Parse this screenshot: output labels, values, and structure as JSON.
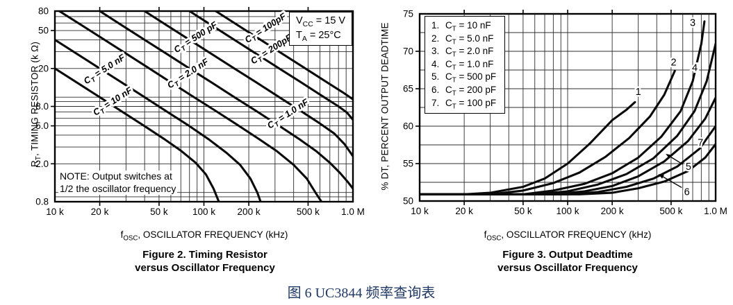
{
  "page": {
    "caption": {
      "text": "图 6 UC3844 频率查询表",
      "color": "#1f3864"
    },
    "background": "#ffffff",
    "ink_color": "#000000"
  },
  "chart_data": [
    {
      "id": "figure2",
      "type": "line",
      "title": "Figure 2. Timing Resistor versus Oscillator Frequency",
      "title_lines": [
        "Figure 2. Timing Resistor",
        "versus Oscillator Frequency"
      ],
      "xlabel": "fOSC, OSCILLATOR FREQUENCY (kHz)",
      "xlabel_parts": {
        "pre": "f",
        "sub": "OSC",
        "post": ", OSCILLATOR FREQUENCY (kHz)"
      },
      "ylabel": "RT, TIMING RESISTOR (kΩ)",
      "ylabel_parts": {
        "pre": "R",
        "sub": "T",
        "post": ", TIMING RESISTOR (k Ω)"
      },
      "x_scale": "log",
      "y_scale": "log",
      "xlim": [
        10,
        1000
      ],
      "ylim": [
        0.8,
        80
      ],
      "x_unit": "kHz",
      "y_unit": "kΩ",
      "grid": "log-minor-both",
      "note_lines": [
        "NOTE: Output switches at",
        "1/2 the oscillator frequency"
      ],
      "conditions": [
        {
          "pre": "V",
          "sub": "CC",
          "post": " = 15 V"
        },
        {
          "pre": "T",
          "sub": "A",
          "post": " = 25°C"
        }
      ],
      "x_ticks": [
        {
          "v": 10,
          "t": "10 k"
        },
        {
          "v": 20,
          "t": "20 k"
        },
        {
          "v": 50,
          "t": "50 k"
        },
        {
          "v": 100,
          "t": "100 k"
        },
        {
          "v": 200,
          "t": "200 k"
        },
        {
          "v": 500,
          "t": "500 k"
        },
        {
          "v": 1000,
          "t": "1.0 M"
        }
      ],
      "y_ticks": [
        {
          "v": 80,
          "t": "80"
        },
        {
          "v": 50,
          "t": "50"
        },
        {
          "v": 20,
          "t": "20"
        },
        {
          "v": 8,
          "t": "8.0"
        },
        {
          "v": 5,
          "t": "5.0"
        },
        {
          "v": 2,
          "t": "2.0"
        },
        {
          "v": 0.8,
          "t": "0.8"
        }
      ],
      "series": [
        {
          "name": "CT = 10 nF",
          "label": {
            "pre": "C",
            "sub": "T",
            "post": " = 10 nF"
          },
          "label_at": [
            25,
            8.5
          ],
          "label_angle": -33,
          "points": [
            [
              10,
              20
            ],
            [
              14,
              14.3
            ],
            [
              20,
              10
            ],
            [
              28,
              7.1
            ],
            [
              39,
              5.1
            ],
            [
              54,
              3.65
            ],
            [
              70,
              2.75
            ],
            [
              88,
              2.05
            ],
            [
              103,
              1.55
            ],
            [
              116,
              1.1
            ],
            [
              126,
              0.8
            ]
          ]
        },
        {
          "name": "CT = 5.0 nF",
          "label": {
            "pre": "C",
            "sub": "T",
            "post": " = 5.0 nF"
          },
          "label_at": [
            22,
            18.5
          ],
          "label_angle": -33,
          "points": [
            [
              10,
              40
            ],
            [
              14,
              28.6
            ],
            [
              20,
              20
            ],
            [
              28,
              14.3
            ],
            [
              40,
              10
            ],
            [
              56,
              7.1
            ],
            [
              78,
              5.1
            ],
            [
              108,
              3.6
            ],
            [
              142,
              2.6
            ],
            [
              175,
              1.95
            ],
            [
              205,
              1.4
            ],
            [
              228,
              1.0
            ],
            [
              240,
              0.8
            ]
          ]
        },
        {
          "name": "CT = 2.0 nF",
          "label": {
            "pre": "C",
            "sub": "T",
            "post": " = 2.0 nF"
          },
          "label_at": [
            80,
            16.7
          ],
          "label_angle": -33,
          "points": [
            [
              10.7,
              80
            ],
            [
              15,
              57.3
            ],
            [
              21,
              41
            ],
            [
              30,
              28.7
            ],
            [
              42,
              20.5
            ],
            [
              60,
              14.3
            ],
            [
              84,
              10.2
            ],
            [
              118,
              7.3
            ],
            [
              165,
              5.2
            ],
            [
              230,
              3.7
            ],
            [
              310,
              2.7
            ],
            [
              400,
              1.95
            ],
            [
              490,
              1.4
            ],
            [
              560,
              1.0
            ],
            [
              615,
              0.8
            ]
          ]
        },
        {
          "name": "CT = 1.0 nF",
          "label": {
            "pre": "C",
            "sub": "T",
            "post": " = 1.0 nF"
          },
          "label_at": [
            375,
            6.3
          ],
          "label_angle": -33,
          "points": [
            [
              20,
              80
            ],
            [
              28,
              57
            ],
            [
              40,
              40
            ],
            [
              56,
              28.6
            ],
            [
              80,
              20
            ],
            [
              113,
              14.2
            ],
            [
              160,
              10
            ],
            [
              226,
              7.1
            ],
            [
              320,
              5.0
            ],
            [
              440,
              3.6
            ],
            [
              570,
              2.7
            ],
            [
              700,
              2.05
            ],
            [
              820,
              1.6
            ],
            [
              920,
              1.3
            ],
            [
              1000,
              1.1
            ]
          ]
        },
        {
          "name": "CT = 500 pF",
          "label": {
            "pre": "C",
            "sub": "T",
            "post": " = 500 pF"
          },
          "label_at": [
            90,
            40
          ],
          "label_angle": -33,
          "points": [
            [
              40,
              80
            ],
            [
              56,
              57
            ],
            [
              80,
              40
            ],
            [
              113,
              28.3
            ],
            [
              160,
              20
            ],
            [
              226,
              14.2
            ],
            [
              320,
              10
            ],
            [
              450,
              7.1
            ],
            [
              600,
              5.3
            ],
            [
              750,
              4.15
            ],
            [
              880,
              3.2
            ],
            [
              1000,
              2.4
            ]
          ]
        },
        {
          "name": "CT = 200pF",
          "label": {
            "pre": "C",
            "sub": "T",
            "post": " = 200pF"
          },
          "label_at": [
            290,
            30
          ],
          "label_angle": -33,
          "points": [
            [
              80,
              80
            ],
            [
              113,
              56.6
            ],
            [
              160,
              40
            ],
            [
              226,
              28.3
            ],
            [
              320,
              20
            ],
            [
              452,
              14.2
            ],
            [
              640,
              10
            ],
            [
              800,
              8.0
            ],
            [
              910,
              6.9
            ],
            [
              1000,
              5.8
            ]
          ]
        },
        {
          "name": "CT = 100pF",
          "label": {
            "pre": "C",
            "sub": "T",
            "post": " = 100pF"
          },
          "label_at": [
            265,
            50
          ],
          "label_angle": -33,
          "points": [
            [
              120,
              80
            ],
            [
              170,
              56.5
            ],
            [
              240,
              40
            ],
            [
              340,
              28.2
            ],
            [
              480,
              20
            ],
            [
              680,
              14.1
            ],
            [
              850,
              11.3
            ],
            [
              1000,
              9.5
            ]
          ]
        }
      ]
    },
    {
      "id": "figure3",
      "type": "line",
      "title": "Figure 3. Output Deadtime versus Oscillator Frequency",
      "title_lines": [
        "Figure 3. Output Deadtime",
        "versus Oscillator Frequency"
      ],
      "xlabel": "fOSC, OSCILLATOR FREQUENCY (kHz)",
      "xlabel_parts": {
        "pre": "f",
        "sub": "OSC",
        "post": ", OSCILLATOR FREQUENCY (kHz)"
      },
      "ylabel": "% DT, PERCENT OUTPUT DEADTIME",
      "ylabel_parts": {
        "pre": "% DT, PERCENT OUTPUT DEADTIME",
        "sub": "",
        "post": ""
      },
      "x_scale": "log",
      "y_scale": "linear",
      "xlim": [
        10,
        1000
      ],
      "ylim": [
        50,
        75
      ],
      "x_unit": "kHz",
      "y_unit": "%",
      "grid": "log-minor-x, 2.5-step-y",
      "y_minor_step": 2.5,
      "legend_position": "top-left",
      "legend": [
        {
          "num": "1.",
          "pre": "C",
          "sub": "T",
          "post": " = 10 nF"
        },
        {
          "num": "2.",
          "pre": "C",
          "sub": "T",
          "post": " = 5.0 nF"
        },
        {
          "num": "3.",
          "pre": "C",
          "sub": "T",
          "post": " = 2.0 nF"
        },
        {
          "num": "4.",
          "pre": "C",
          "sub": "T",
          "post": " = 1.0 nF"
        },
        {
          "num": "5.",
          "pre": "C",
          "sub": "T",
          "post": " = 500 pF"
        },
        {
          "num": "6.",
          "pre": "C",
          "sub": "T",
          "post": " = 200 pF"
        },
        {
          "num": "7.",
          "pre": "C",
          "sub": "T",
          "post": " = 100 pF"
        }
      ],
      "x_ticks": [
        {
          "v": 10,
          "t": "10 k"
        },
        {
          "v": 20,
          "t": "20 k"
        },
        {
          "v": 50,
          "t": "50 k"
        },
        {
          "v": 100,
          "t": "100 k"
        },
        {
          "v": 200,
          "t": "200 k"
        },
        {
          "v": 500,
          "t": "500 k"
        },
        {
          "v": 1000,
          "t": "1.0 M"
        }
      ],
      "y_ticks": [
        {
          "v": 75,
          "t": "75"
        },
        {
          "v": 70,
          "t": "70"
        },
        {
          "v": 65,
          "t": "65"
        },
        {
          "v": 60,
          "t": "60"
        },
        {
          "v": 55,
          "t": "55"
        },
        {
          "v": 50,
          "t": "50"
        }
      ],
      "series": [
        {
          "name": "1",
          "ct": "10 nF",
          "label_at": [
            300,
            64.6
          ],
          "points": [
            [
              10,
              50.9
            ],
            [
              20,
              50.9
            ],
            [
              30,
              51.1
            ],
            [
              50,
              51.9
            ],
            [
              70,
              53.0
            ],
            [
              100,
              55.0
            ],
            [
              140,
              57.6
            ],
            [
              200,
              60.8
            ],
            [
              250,
              62.2
            ],
            [
              285,
              63.2
            ]
          ]
        },
        {
          "name": "2",
          "ct": "5.0 nF",
          "label_at": [
            520,
            68.5
          ],
          "points": [
            [
              10,
              50.9
            ],
            [
              30,
              50.9
            ],
            [
              50,
              51.4
            ],
            [
              80,
              52.4
            ],
            [
              120,
              53.8
            ],
            [
              180,
              55.9
            ],
            [
              260,
              58.4
            ],
            [
              360,
              61.3
            ],
            [
              450,
              64.2
            ],
            [
              530,
              67.4
            ]
          ]
        },
        {
          "name": "3",
          "ct": "2.0 nF",
          "label_at": [
            700,
            73.8
          ],
          "points": [
            [
              10,
              50.9
            ],
            [
              50,
              50.9
            ],
            [
              80,
              51.4
            ],
            [
              130,
              52.3
            ],
            [
              200,
              53.7
            ],
            [
              300,
              55.8
            ],
            [
              430,
              58.6
            ],
            [
              580,
              62.0
            ],
            [
              700,
              66.0
            ],
            [
              800,
              71.0
            ],
            [
              840,
              74.0
            ]
          ]
        },
        {
          "name": "4",
          "ct": "1.0 nF",
          "label_at": [
            723,
            67.8
          ],
          "points": [
            [
              10,
              50.9
            ],
            [
              60,
              50.9
            ],
            [
              100,
              51.3
            ],
            [
              160,
              52.2
            ],
            [
              250,
              53.6
            ],
            [
              380,
              55.7
            ],
            [
              550,
              58.7
            ],
            [
              720,
              62.0
            ],
            [
              870,
              66.0
            ],
            [
              1000,
              71.0
            ]
          ]
        },
        {
          "name": "5",
          "ct": "500 pF",
          "label_at": [
            655,
            54.6
          ],
          "arrow": {
            "from": [
              600,
              54.9
            ],
            "to": [
              460,
              56.3
            ]
          },
          "points": [
            [
              10,
              50.9
            ],
            [
              80,
              50.9
            ],
            [
              130,
              51.3
            ],
            [
              200,
              52.0
            ],
            [
              300,
              53.3
            ],
            [
              450,
              55.3
            ],
            [
              650,
              58.0
            ],
            [
              850,
              61.0
            ],
            [
              1000,
              63.8
            ]
          ]
        },
        {
          "name": "6",
          "ct": "200 pF",
          "label_at": [
            640,
            51.2
          ],
          "arrow": {
            "from": [
              590,
              51.8
            ],
            "to": [
              410,
              53.6
            ]
          },
          "points": [
            [
              10,
              50.9
            ],
            [
              100,
              50.9
            ],
            [
              160,
              51.2
            ],
            [
              250,
              51.9
            ],
            [
              380,
              53.0
            ],
            [
              550,
              54.6
            ],
            [
              780,
              57.0
            ],
            [
              1000,
              60.0
            ]
          ]
        },
        {
          "name": "7",
          "ct": "100 pF",
          "label_at": [
            790,
            57.8
          ],
          "points": [
            [
              10,
              50.9
            ],
            [
              120,
              50.9
            ],
            [
              200,
              51.1
            ],
            [
              300,
              51.7
            ],
            [
              450,
              52.6
            ],
            [
              650,
              54.0
            ],
            [
              850,
              55.8
            ],
            [
              1000,
              57.6
            ]
          ]
        }
      ]
    }
  ]
}
